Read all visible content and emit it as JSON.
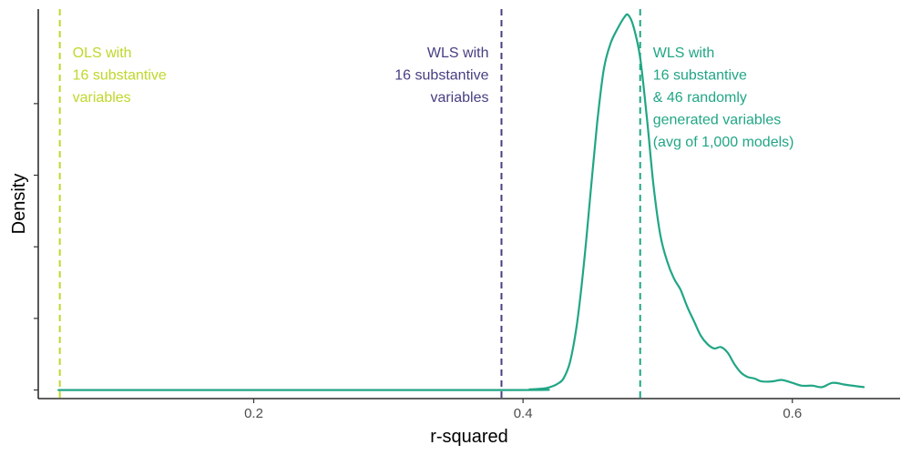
{
  "chart_data": {
    "type": "area",
    "xlabel": "r-squared",
    "ylabel": "Density",
    "xlim": [
      0.04,
      0.68
    ],
    "ylim": [
      -0.3,
      13.3
    ],
    "x_ticks": [
      0.2,
      0.4,
      0.6
    ],
    "x_tick_labels": [
      "0.2",
      "0.4",
      "0.6"
    ],
    "y_ticks": [
      0,
      5,
      10
    ],
    "y_tick_labels": [
      "",
      "",
      ""
    ],
    "y_minor_ticks": [
      2.5,
      7.5
    ],
    "grid": false,
    "series": [
      {
        "color": "#21a685",
        "x": [
          0.055,
          0.39,
          0.405,
          0.415,
          0.42,
          0.425,
          0.43,
          0.435,
          0.44,
          0.445,
          0.45,
          0.455,
          0.46,
          0.465,
          0.47,
          0.475,
          0.478,
          0.482,
          0.487,
          0.492,
          0.497,
          0.502,
          0.507,
          0.512,
          0.517,
          0.522,
          0.527,
          0.532,
          0.537,
          0.542,
          0.547,
          0.552,
          0.557,
          0.562,
          0.567,
          0.572,
          0.577,
          0.585,
          0.592,
          0.6,
          0.607,
          0.615,
          0.622,
          0.63,
          0.64,
          0.653
        ],
        "y": [
          0,
          0,
          0.02,
          0.05,
          0.1,
          0.2,
          0.4,
          1.0,
          2.3,
          4.3,
          6.8,
          9.3,
          11.2,
          12.1,
          12.6,
          13.0,
          13.1,
          12.7,
          11.6,
          9.5,
          7.1,
          5.4,
          4.5,
          3.9,
          3.5,
          2.9,
          2.4,
          1.9,
          1.6,
          1.45,
          1.5,
          1.3,
          0.9,
          0.6,
          0.45,
          0.4,
          0.3,
          0.3,
          0.35,
          0.25,
          0.15,
          0.15,
          0.1,
          0.25,
          0.18,
          0.1
        ]
      }
    ],
    "reference_lines": [
      {
        "x": 0.056,
        "color": "#c0d72a",
        "lines": [
          "OLS with",
          "16 substantive",
          "variables"
        ],
        "align": "left"
      },
      {
        "x": 0.384,
        "color": "#463f82",
        "lines": [
          "WLS with",
          "16 substantive",
          "variables"
        ],
        "align": "right"
      },
      {
        "x": 0.487,
        "color": "#21a685",
        "lines": [
          "WLS with",
          "16 substantive",
          "& 46 randomly",
          "generated variables",
          "(avg of 1,000 models)"
        ],
        "align": "left"
      }
    ]
  }
}
